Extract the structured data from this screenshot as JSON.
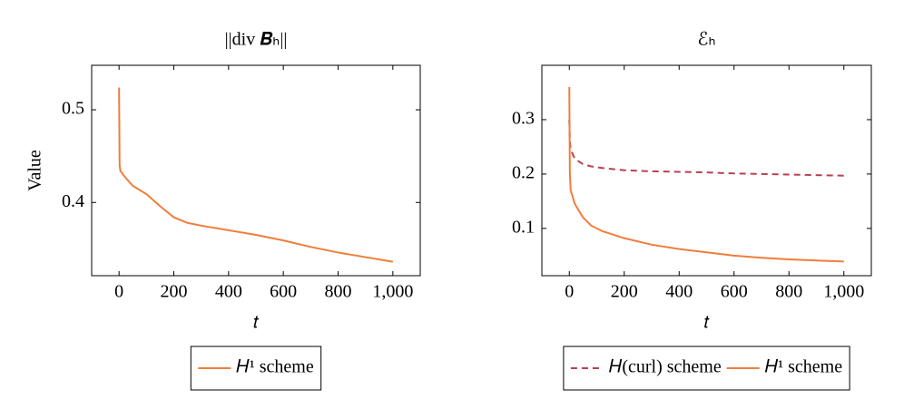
{
  "chart_data": [
    {
      "type": "line",
      "title": "||div 𝑩ₕ||",
      "ylabel": "Value",
      "xlabel": "𝑡",
      "x": [
        0,
        2,
        5,
        20,
        50,
        100,
        150,
        200,
        250,
        300,
        400,
        500,
        600,
        700,
        800,
        900,
        1000
      ],
      "series": [
        {
          "name": "𝐻¹ scheme",
          "color": "#f07d3c",
          "style": "solid",
          "values": [
            0.524,
            0.44,
            0.434,
            0.428,
            0.418,
            0.409,
            0.396,
            0.384,
            0.378,
            0.375,
            0.37,
            0.365,
            0.359,
            0.352,
            0.346,
            0.341,
            0.336
          ]
        }
      ],
      "xlim": [
        -100,
        1100
      ],
      "ylim": [
        0.321,
        0.548
      ],
      "xticks": [
        0,
        200,
        400,
        600,
        800,
        {
          "value": 1000,
          "label": "1,000"
        }
      ],
      "yticks": [
        0.4,
        0.5
      ]
    },
    {
      "type": "line",
      "title": "ℰₕ",
      "xlabel": "𝑡",
      "x": [
        0,
        2,
        5,
        20,
        50,
        80,
        120,
        200,
        300,
        400,
        500,
        600,
        700,
        800,
        900,
        1000
      ],
      "series": [
        {
          "name": "𝐻(curl) scheme",
          "color": "#b94050",
          "style": "dashed",
          "values": [
            0.3,
            0.26,
            0.245,
            0.228,
            0.218,
            0.214,
            0.211,
            0.207,
            0.205,
            0.204,
            0.203,
            0.201,
            0.2,
            0.199,
            0.198,
            0.197
          ]
        },
        {
          "name": "𝐻¹ scheme",
          "color": "#f07d3c",
          "style": "solid",
          "values": [
            0.36,
            0.2,
            0.17,
            0.145,
            0.12,
            0.105,
            0.095,
            0.082,
            0.07,
            0.062,
            0.056,
            0.05,
            0.046,
            0.043,
            0.041,
            0.039
          ]
        }
      ],
      "xlim": [
        -100,
        1100
      ],
      "ylim": [
        0.013,
        0.4
      ],
      "xticks": [
        0,
        200,
        400,
        600,
        800,
        {
          "value": 1000,
          "label": "1,000"
        }
      ],
      "yticks": [
        0.1,
        0.2,
        0.3
      ]
    }
  ]
}
